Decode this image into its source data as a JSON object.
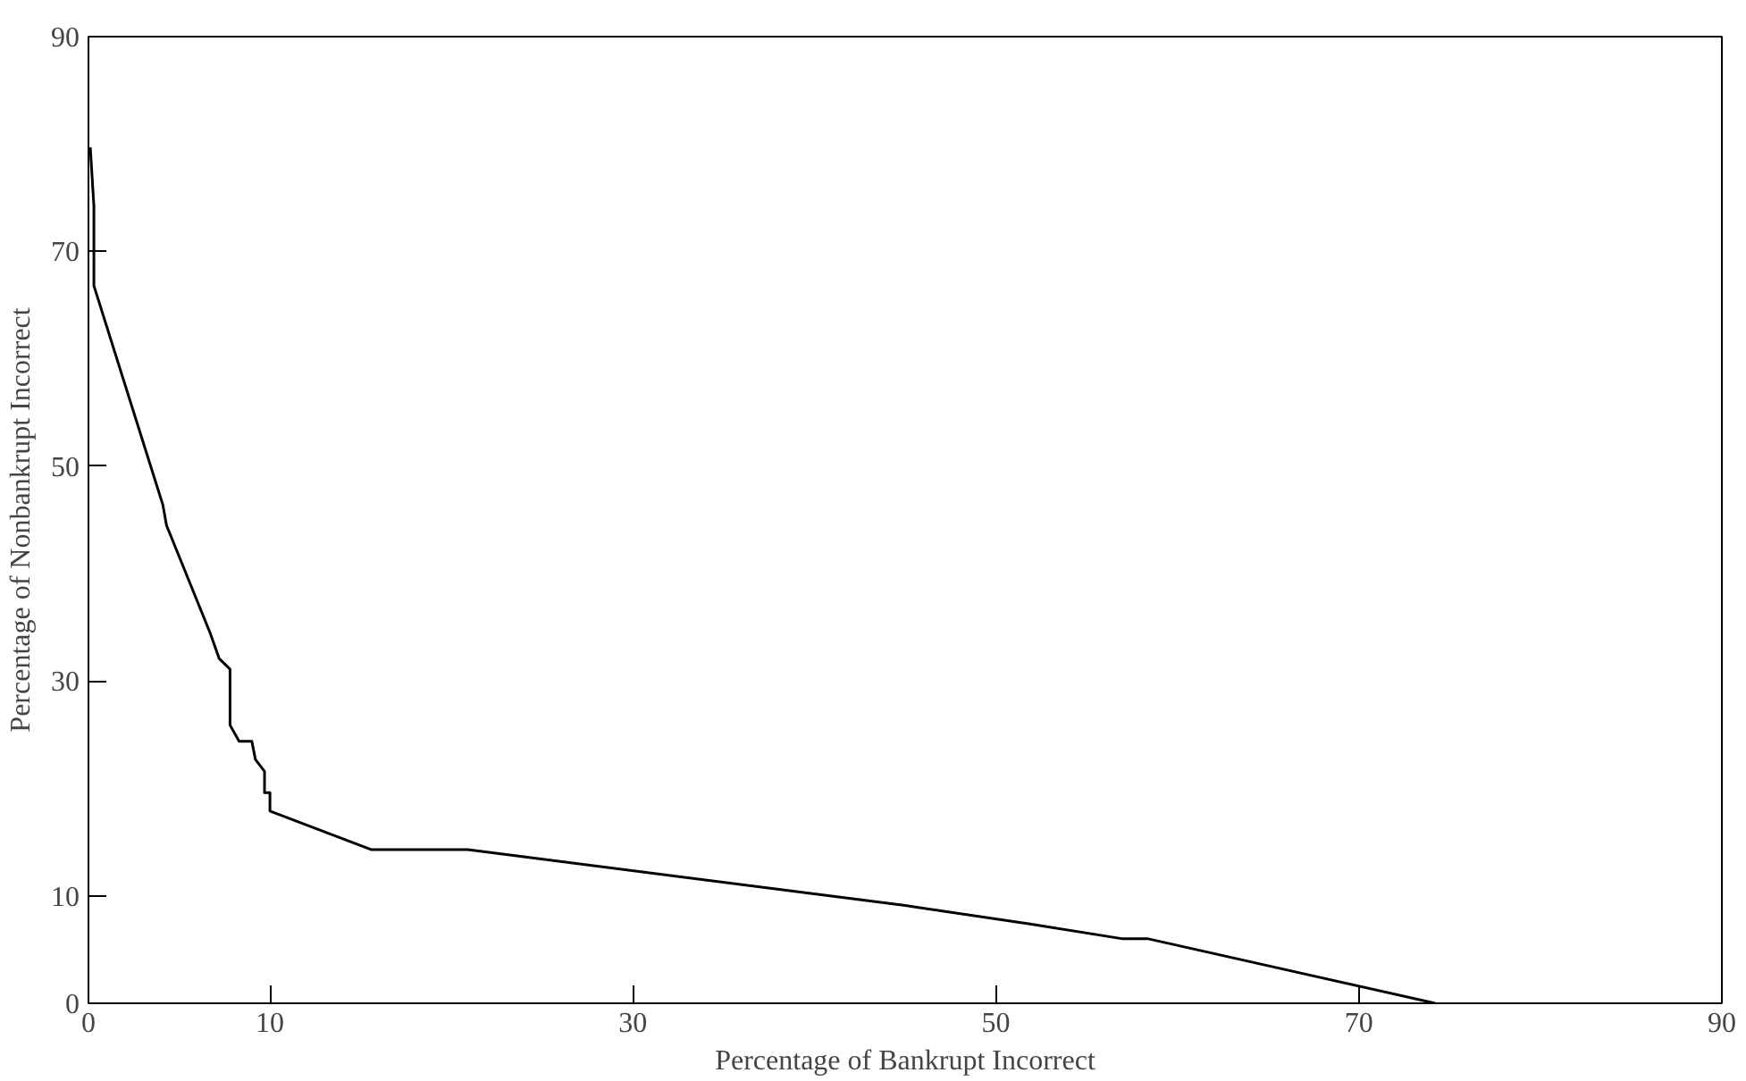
{
  "chart_data": {
    "type": "line",
    "xlabel": "Percentage of Bankrupt Incorrect",
    "ylabel": "Percentage of Nonbankrupt Incorrect",
    "xlim": [
      0,
      90
    ],
    "xticks": [
      0,
      10,
      30,
      50,
      70,
      90
    ],
    "ylim": [
      0,
      90
    ],
    "yticks": [
      0,
      10,
      30,
      50,
      70,
      90
    ],
    "x": [
      0.1,
      0.3,
      0.3,
      4.1,
      4.3,
      6.7,
      7.2,
      7.8,
      7.8,
      8.3,
      9.0,
      9.2,
      9.7,
      9.7,
      10.0,
      10.0,
      15.6,
      20.9,
      45.0,
      51.8,
      57.0,
      58.4,
      74.2
    ],
    "series": [
      {
        "color": "#000000",
        "values": [
          79.7,
          74.2,
          66.8,
          46.4,
          44.5,
          34.5,
          32.1,
          31.1,
          25.9,
          24.4,
          24.4,
          22.7,
          21.6,
          19.6,
          19.6,
          17.9,
          14.3,
          14.3,
          9.1,
          7.4,
          6.0,
          6.0,
          0
        ]
      }
    ],
    "grid": false,
    "marker": "none",
    "line_style": "solid"
  }
}
